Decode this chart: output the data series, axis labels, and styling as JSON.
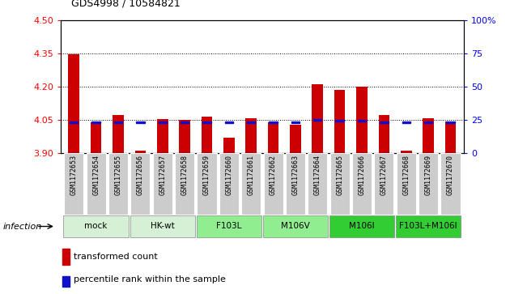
{
  "title": "GDS4998 / 10584821",
  "samples": [
    "GSM1172653",
    "GSM1172654",
    "GSM1172655",
    "GSM1172656",
    "GSM1172657",
    "GSM1172658",
    "GSM1172659",
    "GSM1172660",
    "GSM1172661",
    "GSM1172662",
    "GSM1172663",
    "GSM1172664",
    "GSM1172665",
    "GSM1172666",
    "GSM1172667",
    "GSM1172668",
    "GSM1172669",
    "GSM1172670"
  ],
  "bar_values": [
    4.348,
    4.04,
    4.073,
    3.91,
    4.053,
    4.05,
    4.063,
    3.97,
    4.058,
    4.04,
    4.028,
    4.21,
    4.187,
    4.201,
    4.073,
    3.91,
    4.058,
    4.043
  ],
  "blue_values": [
    4.04,
    4.04,
    4.04,
    4.038,
    4.04,
    4.04,
    4.04,
    4.04,
    4.04,
    4.04,
    4.038,
    4.05,
    4.046,
    4.046,
    4.04,
    4.038,
    4.04,
    4.04
  ],
  "groups": [
    {
      "label": "mock",
      "start": 0,
      "end": 2,
      "color": "#d5f0d5"
    },
    {
      "label": "HK-wt",
      "start": 3,
      "end": 5,
      "color": "#d5f0d5"
    },
    {
      "label": "F103L",
      "start": 6,
      "end": 8,
      "color": "#90ee90"
    },
    {
      "label": "M106V",
      "start": 9,
      "end": 11,
      "color": "#90ee90"
    },
    {
      "label": "M106I",
      "start": 12,
      "end": 14,
      "color": "#32cd32"
    },
    {
      "label": "F103L+M106I",
      "start": 15,
      "end": 17,
      "color": "#32cd32"
    }
  ],
  "ylim": [
    3.9,
    4.5
  ],
  "yticks": [
    3.9,
    4.05,
    4.2,
    4.35,
    4.5
  ],
  "y2ticks_pct": [
    0,
    25,
    50,
    75,
    100
  ],
  "y2labels": [
    "0",
    "25",
    "50",
    "75",
    "100%"
  ],
  "bar_color": "#cc0000",
  "blue_color": "#1010cc",
  "sample_box_color": "#cccccc",
  "infection_label": "infection",
  "legend_red": "transformed count",
  "legend_blue": "percentile rank within the sample"
}
